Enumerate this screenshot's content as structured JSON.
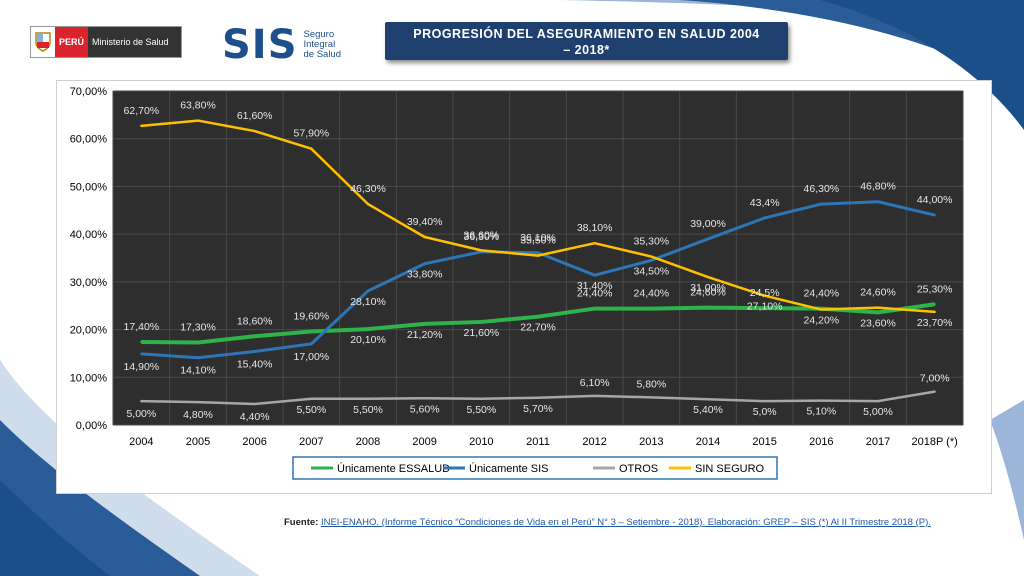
{
  "header": {
    "minsa": {
      "country": "PERÚ",
      "ministry": "Ministerio de Salud"
    },
    "sis": {
      "mark": "SIS",
      "sub1": "Seguro",
      "sub2": "Integral",
      "sub3": "de Salud"
    },
    "title_line1": "PROGRESIÓN DEL ASEGURAMIENTO EN SALUD 2004",
    "title_line2": "– 2018*"
  },
  "colors": {
    "title_bg": "#1f3f6e",
    "plot_bg": "#2e2e2e",
    "essalud": "#2db34a",
    "sis": "#2e75b6",
    "otros": "#a6a6a6",
    "sin_seguro": "#ffc000",
    "swoosh": "#1b4f8a"
  },
  "chart_data": {
    "type": "line",
    "categories": [
      "2004",
      "2005",
      "2006",
      "2007",
      "2008",
      "2009",
      "2010",
      "2011",
      "2012",
      "2013",
      "2014",
      "2015",
      "2016",
      "2017",
      "2018P (*)"
    ],
    "ylim": [
      0,
      70
    ],
    "yticks": [
      "0,00%",
      "10,00%",
      "20,00%",
      "30,00%",
      "40,00%",
      "50,00%",
      "60,00%",
      "70,00%"
    ],
    "grid": true,
    "legend_position": "bottom",
    "series": [
      {
        "name": "Únicamente ESSALUD",
        "color": "#2db34a",
        "values": [
          17.4,
          17.3,
          18.6,
          19.6,
          20.1,
          21.2,
          21.6,
          22.7,
          24.4,
          24.4,
          24.6,
          24.5,
          24.4,
          23.6,
          25.3
        ],
        "labels": [
          "17,40%",
          "17,30%",
          "18,60%",
          "19,60%",
          "20,10%",
          "21,20%",
          "21,60%",
          "22,70%",
          "24,40%",
          "24,40%",
          "24,60%",
          "24,5%",
          "24,40%",
          "23,60%",
          "25,30%"
        ]
      },
      {
        "name": "Únicamente SIS",
        "color": "#2e75b6",
        "values": [
          14.9,
          14.1,
          15.4,
          17.0,
          28.1,
          33.8,
          36.3,
          36.1,
          31.4,
          34.5,
          39.0,
          43.4,
          46.3,
          46.8,
          44.0
        ],
        "labels": [
          "14,90%",
          "14,10%",
          "15,40%",
          "17,00%",
          "28,10%",
          "33,80%",
          "36,30%",
          "36,10%",
          "31,40%",
          "34,50%",
          "39,00%",
          "43,4%",
          "46,30%",
          "46,80%",
          "44,00%"
        ]
      },
      {
        "name": "OTROS",
        "color": "#a6a6a6",
        "values": [
          5.0,
          4.8,
          4.4,
          5.5,
          5.5,
          5.6,
          5.5,
          5.7,
          6.1,
          5.8,
          5.4,
          5.0,
          5.1,
          5.0,
          7.0
        ],
        "labels": [
          "5,00%",
          "4,80%",
          "4,40%",
          "5,50%",
          "5,50%",
          "5,60%",
          "5,50%",
          "5,70%",
          "6,10%",
          "5,80%",
          "5,40%",
          "5,0%",
          "5,10%",
          "5,00%",
          "7,00%"
        ]
      },
      {
        "name": "SIN SEGURO",
        "color": "#ffc000",
        "values": [
          62.7,
          63.8,
          61.6,
          57.9,
          46.3,
          39.4,
          36.6,
          35.5,
          38.1,
          35.3,
          31.0,
          27.1,
          24.2,
          24.6,
          23.7
        ],
        "labels": [
          "62,70%",
          "63,80%",
          "61,60%",
          "57,90%",
          "46,30%",
          "39,40%",
          "36,60%",
          "35,50%",
          "38,10%",
          "35,30%",
          "31,00%",
          "27,10%",
          "24,20%",
          "24,60%",
          "23,70%"
        ]
      }
    ]
  },
  "source": {
    "label": "Fuente:",
    "text": "INEI-ENAHO. (Informe Técnico “Condiciones de Vida en el Perú” N° 3 – Setiembre - 2018). Elaboración: GREP – SIS (*) Al II Trimestre 2018 (P)."
  }
}
